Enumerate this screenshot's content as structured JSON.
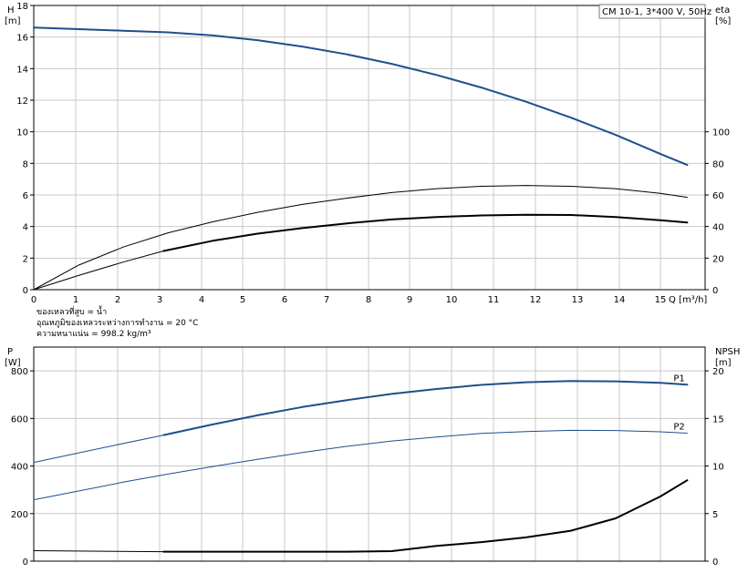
{
  "title": "CM 10-1, 3*400 V, 50Hz",
  "notes": [
    "ของเหลวที่สูบ = น้ำ",
    "อุณหภูมิของเหลวระหว่างการทำงาน = 20 °C",
    "ความหนาแน่น = 998.2 kg/m³"
  ],
  "colors": {
    "blue": "#1f4e8c",
    "black": "#000000",
    "grid": "#c8c8c8"
  },
  "chart_data": [
    {
      "type": "line",
      "panel": "top",
      "xlabel": "Q [m³/h]",
      "x_ticks": [
        "0",
        "1",
        "2",
        "3",
        "4",
        "5",
        "6",
        "7",
        "8",
        "9",
        "10",
        "11",
        "12",
        "13",
        "14",
        "15"
      ],
      "xlim": [
        0,
        15.0
      ],
      "y_left": {
        "label_top": "H",
        "label_unit": "[m]",
        "ylim": [
          0,
          18
        ],
        "ticks": [
          "0",
          "2",
          "4",
          "6",
          "8",
          "10",
          "12",
          "14",
          "16",
          "18"
        ]
      },
      "y_right": {
        "label_top": "eta",
        "label_unit": "[%]",
        "ylim": [
          0,
          180
        ],
        "ticks": [
          "0",
          "20",
          "40",
          "60",
          "80",
          "100"
        ]
      },
      "series": [
        {
          "key": "H",
          "axis": "left",
          "color": "#1f4e8c",
          "width": 2,
          "x": [
            0,
            1,
            2,
            3,
            4,
            5,
            6,
            7,
            8,
            9,
            10,
            11,
            12,
            13,
            14,
            14.6
          ],
          "y": [
            16.6,
            16.5,
            16.4,
            16.3,
            16.1,
            15.8,
            15.4,
            14.9,
            14.3,
            13.6,
            12.8,
            11.9,
            10.9,
            9.8,
            8.6,
            7.9
          ]
        },
        {
          "key": "eta_thin",
          "axis": "right",
          "color": "#000000",
          "width": 1,
          "x": [
            0,
            1,
            2,
            3,
            4,
            5,
            6,
            7,
            8,
            9,
            10,
            11,
            12,
            13,
            14,
            14.6
          ],
          "y": [
            0,
            15.5,
            27,
            36,
            43,
            49,
            54,
            58,
            61.5,
            64,
            65.5,
            66,
            65.5,
            64,
            61,
            58.5
          ]
        },
        {
          "key": "eta_thin_low",
          "axis": "right",
          "color": "#000000",
          "width": 1,
          "x": [
            0,
            1,
            2,
            2.9
          ],
          "y": [
            0,
            9,
            17.5,
            24.5
          ]
        },
        {
          "key": "eta_thick",
          "axis": "right",
          "color": "#000000",
          "width": 2,
          "x": [
            2.9,
            4,
            5,
            6,
            7,
            8,
            9,
            10,
            11,
            12,
            13,
            14,
            14.6
          ],
          "y": [
            24.5,
            31,
            35.5,
            39,
            42,
            44.5,
            46,
            47,
            47.5,
            47.3,
            46,
            44,
            42.5
          ]
        }
      ]
    },
    {
      "type": "line",
      "panel": "bottom",
      "xlim": [
        0,
        15.0
      ],
      "y_left": {
        "label_top": "P",
        "label_unit": "[W]",
        "ylim": [
          0,
          900
        ],
        "ticks": [
          "0",
          "200",
          "400",
          "600",
          "800"
        ]
      },
      "y_right": {
        "label_top": "NPSH",
        "label_unit": "[m]",
        "ylim": [
          0,
          22.5
        ],
        "ticks": [
          "0",
          "5",
          "10",
          "15",
          "20"
        ]
      },
      "series": [
        {
          "key": "P1_thin",
          "axis": "left",
          "color": "#1f4e8c",
          "width": 1,
          "x": [
            0,
            1.5,
            2.9
          ],
          "y": [
            415,
            475,
            530
          ]
        },
        {
          "key": "P1",
          "name": "P1",
          "axis": "left",
          "color": "#1f4e8c",
          "width": 2,
          "x": [
            2.9,
            4,
            5,
            6,
            7,
            8,
            9,
            10,
            11,
            12,
            13,
            14,
            14.6
          ],
          "y": [
            530,
            575,
            613,
            648,
            677,
            703,
            724,
            741,
            752,
            757,
            756,
            750,
            742
          ]
        },
        {
          "key": "P2",
          "name": "P2",
          "axis": "left",
          "color": "#1f4e8c",
          "width": 1,
          "x": [
            0,
            1,
            2,
            3,
            4,
            5,
            6,
            7,
            8,
            9,
            10,
            11,
            12,
            13,
            14,
            14.6
          ],
          "y": [
            258,
            295,
            332,
            366,
            398,
            428,
            457,
            483,
            505,
            522,
            537,
            545,
            550,
            549,
            544,
            538
          ]
        },
        {
          "key": "NPSH_thin",
          "axis": "right",
          "color": "#000000",
          "width": 1,
          "x": [
            0,
            2.9
          ],
          "y": [
            1.1,
            1.0
          ]
        },
        {
          "key": "NPSH",
          "axis": "right",
          "color": "#000000",
          "width": 2,
          "x": [
            2.9,
            4,
            5,
            6,
            7,
            8,
            9,
            10,
            11,
            12,
            13,
            14,
            14.6
          ],
          "y": [
            1.0,
            1.0,
            1.0,
            1.0,
            1.0,
            1.05,
            1.6,
            2.0,
            2.5,
            3.2,
            4.5,
            6.8,
            8.5
          ]
        }
      ]
    }
  ]
}
